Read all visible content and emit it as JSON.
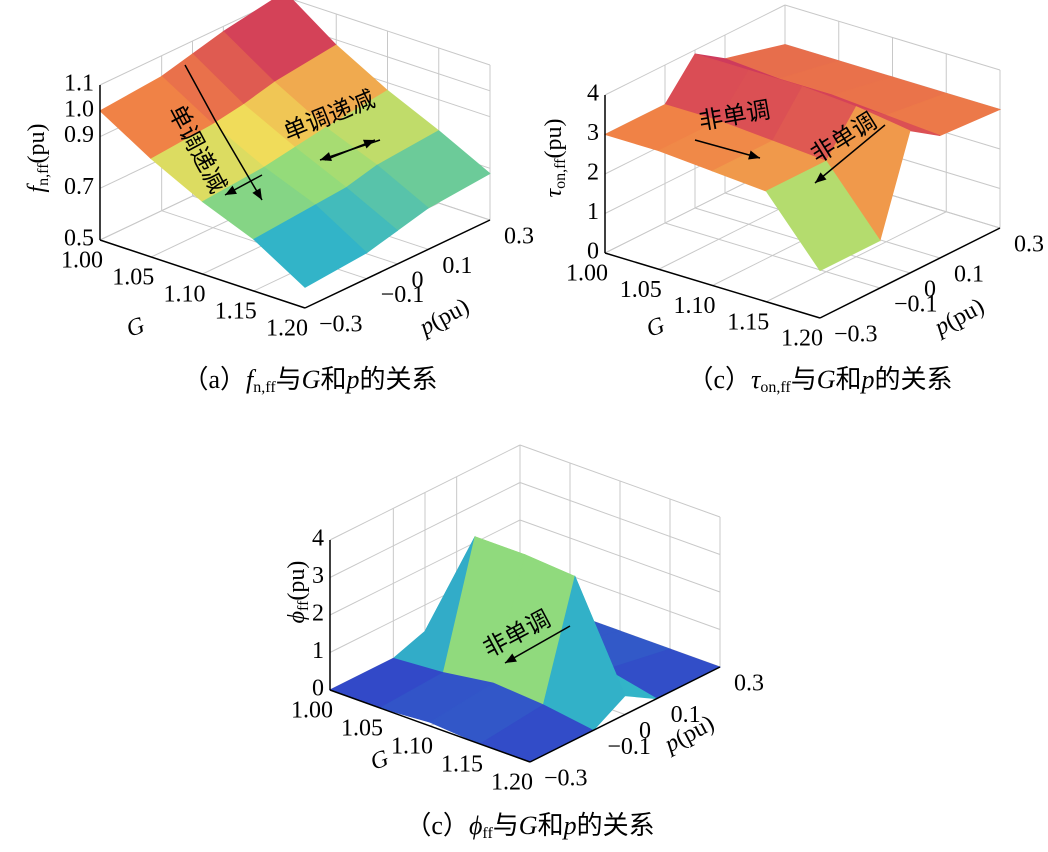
{
  "charts": [
    {
      "type": "surface",
      "zlabel": {
        "main": "f",
        "sub": "n,ff",
        "unit": "(pu)"
      },
      "xlabel": "G",
      "ylabel": {
        "main": "p",
        "unit": "(pu)"
      },
      "zlim": [
        0.5,
        1.1
      ],
      "zticks": [
        0.5,
        0.7,
        0.9,
        {
          "value": 1,
          "label": "1.0"
        },
        1.1
      ],
      "xlim": [
        1,
        1.2
      ],
      "xticks": [
        {
          "value": 1,
          "label": "1.00"
        },
        1.05,
        {
          "value": 1.1,
          "label": "1.10"
        },
        1.15,
        {
          "value": 1.2,
          "label": "1.20"
        }
      ],
      "ylim": [
        -0.3,
        0.3
      ],
      "yticks": [
        {
          "value": -0.3,
          "label": "−0.3"
        },
        {
          "value": -0.1,
          "label": "−0.1"
        },
        0,
        0.1,
        0.3
      ],
      "z": [
        [
          1.0,
          1.02,
          1.05,
          1.08,
          1.12
        ],
        [
          0.88,
          0.9,
          0.92,
          0.95,
          0.98
        ],
        [
          0.78,
          0.8,
          0.82,
          0.84,
          0.87
        ],
        [
          0.7,
          0.72,
          0.73,
          0.76,
          0.78
        ],
        [
          0.58,
          0.6,
          0.63,
          0.66,
          0.68
        ]
      ],
      "annotations": [
        "单调递减",
        "单调递减"
      ],
      "caption": [
        "（a）",
        "f",
        "n,ff",
        "与",
        "G",
        "和",
        "p",
        "的关系"
      ]
    },
    {
      "type": "surface",
      "zlabel": {
        "main": "τ",
        "sub": "on,ff",
        "unit": "(pu)"
      },
      "xlabel": "G",
      "ylabel": {
        "main": "p",
        "unit": "(pu)"
      },
      "zlim": [
        0,
        4
      ],
      "zticks": [
        0,
        1,
        2,
        3,
        4
      ],
      "xlim": [
        1,
        1.2
      ],
      "xticks": [
        {
          "value": 1,
          "label": "1.00"
        },
        1.05,
        {
          "value": 1.1,
          "label": "1.10"
        },
        1.15,
        {
          "value": 1.2,
          "label": "1.20"
        }
      ],
      "ylim": [
        -0.3,
        0.3
      ],
      "yticks": [
        {
          "value": -0.3,
          "label": "−0.3"
        },
        {
          "value": -0.1,
          "label": "−0.1"
        },
        0,
        0.1,
        0.3
      ],
      "z": [
        [
          3.0,
          3.0,
          3.9,
          3.4,
          3.0
        ],
        [
          3.0,
          3.0,
          3.9,
          3.3,
          3.0
        ],
        [
          2.9,
          2.9,
          3.9,
          3.3,
          3.0
        ],
        [
          2.8,
          2.8,
          3.8,
          3.2,
          3.0
        ],
        [
          1.2,
          1.2,
          3.6,
          3.1,
          3.0
        ]
      ],
      "annotations": [
        "非单调",
        "非单调"
      ],
      "caption": [
        "（c）",
        "τ",
        "on,ff",
        "与",
        "G",
        "和",
        "p",
        "的关系"
      ]
    },
    {
      "type": "surface",
      "zlabel": {
        "main": "ϕ",
        "sub": "ff",
        "unit": "(pu)"
      },
      "xlabel": "G",
      "ylabel": {
        "main": "p",
        "unit": "(pu)"
      },
      "zlim": [
        0,
        4
      ],
      "zticks": [
        0,
        1,
        2,
        3,
        4
      ],
      "xlim": [
        1,
        1.2
      ],
      "xticks": [
        {
          "value": 1,
          "label": "1.00"
        },
        1.05,
        {
          "value": 1.1,
          "label": "1.10"
        },
        1.15,
        {
          "value": 1.2,
          "label": "1.20"
        }
      ],
      "ylim": [
        -0.3,
        0.3
      ],
      "yticks": [
        {
          "value": -0.3,
          "label": "−0.3"
        },
        {
          "value": -0.1,
          "label": "−0.1"
        },
        0,
        0.1,
        0.3
      ],
      "z": [
        [
          0,
          0,
          0.3,
          0,
          0
        ],
        [
          0,
          0.1,
          3.3,
          0.3,
          0
        ],
        [
          0.1,
          0.3,
          3.3,
          0.4,
          0
        ],
        [
          0,
          0.2,
          3.2,
          0.3,
          0
        ],
        [
          0,
          0,
          0.5,
          0,
          0
        ]
      ],
      "annotations": [
        "非单调"
      ],
      "caption": [
        "（c）",
        "ϕ",
        "ff",
        "与",
        "G",
        "和",
        "p",
        "的关系"
      ]
    }
  ]
}
